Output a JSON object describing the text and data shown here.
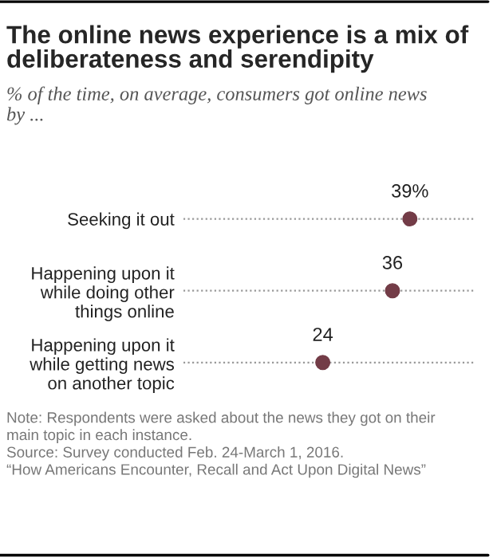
{
  "chart_data": {
    "type": "scatter",
    "orientation": "horizontal",
    "title": "The online news experience is a mix of\ndeliberateness and serendipity",
    "subtitle": "% of the time, on average, consumers got online news\nby ...",
    "categories": [
      "Seeking it out",
      "Happening upon it\nwhile doing other\nthings online",
      "Happening upon it\nwhile getting news\non another topic"
    ],
    "values": [
      39,
      36,
      24
    ],
    "value_labels": [
      "39%",
      "36",
      "24"
    ],
    "color": "#733c47",
    "marker": "circle",
    "xlim": [
      0,
      50
    ],
    "grid": "y",
    "tick_labels": "y",
    "legend": false,
    "annotations": [
      "Note: Respondents were asked about the news they got on their\nmain topic in each instance.\nSource: Survey conducted Feb. 24-March 1, 2016.\n“How Americans Encounter, Recall and Act Upon Digital News”"
    ]
  }
}
